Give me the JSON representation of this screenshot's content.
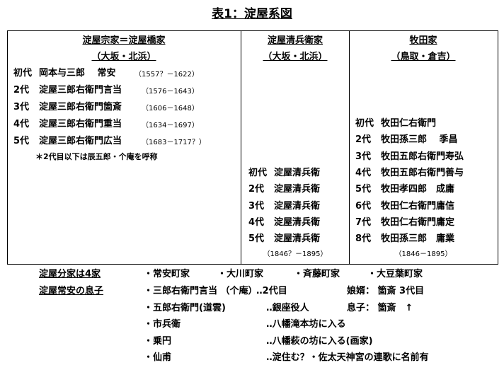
{
  "title": "表1：淀屋系図",
  "columns": [
    {
      "name": "淀屋宗家＝淀屋橋家",
      "place": "（大坂・北浜）",
      "generations": [
        {
          "gen": "初代",
          "name": "岡本与三郎　 常安",
          "years": "（1557？－1622）"
        },
        {
          "gen": "2代",
          "name": "淀屋三郎右衛門言当",
          "years": "（1576－1643）"
        },
        {
          "gen": "3代",
          "name": "淀屋三郎右衛門箇斎",
          "years": "（1606－1648）"
        },
        {
          "gen": "4代",
          "name": "淀屋三郎右衛門重当",
          "years": "（1634－1697）"
        },
        {
          "gen": "5代",
          "name": "淀屋三郎右衛門広当",
          "years": "（1683－1717？）"
        }
      ],
      "note": "＊2代目以下は辰五郎・个庵を呼称"
    },
    {
      "name": "淀屋清兵衛家",
      "place": "（大坂・北浜）",
      "generations": [
        {
          "gen": "初代",
          "name": "淀屋清兵衛"
        },
        {
          "gen": "2代",
          "name": "淀屋清兵衛"
        },
        {
          "gen": "3代",
          "name": "淀屋清兵衛"
        },
        {
          "gen": "4代",
          "name": "淀屋清兵衛"
        },
        {
          "gen": "5代",
          "name": "淀屋清兵衛"
        }
      ],
      "years": "（1846？－1895）"
    },
    {
      "name": "牧田家",
      "place": "（鳥取・倉吉）",
      "generations": [
        {
          "gen": "初代",
          "name": "牧田仁右衛門"
        },
        {
          "gen": "2代",
          "name": "牧田孫三郎　 季昌"
        },
        {
          "gen": "3代",
          "name": "牧田五郎右衛門寿弘"
        },
        {
          "gen": "4代",
          "name": "牧田五郎右衛門善与"
        },
        {
          "gen": "5代",
          "name": "牧田孝四郎　成庸"
        },
        {
          "gen": "6代",
          "name": "牧田仁右衛門庸信"
        },
        {
          "gen": "7代",
          "name": "牧田仁右衛門庸定"
        },
        {
          "gen": "8代",
          "name": "牧田孫三郎　庸業"
        }
      ],
      "years": "（1846－1895）"
    }
  ],
  "branches": {
    "label": "淀屋分家は4家",
    "items": [
      "・常安町家",
      "・大川町家",
      "・斉藤町家",
      "・大豆葉町家"
    ]
  },
  "sons": {
    "label": "淀屋常安の息子",
    "rows": [
      {
        "name": "・三郎右衛門言当 （个庵）",
        "desc": "‥2代目",
        "extra": "娘婿：  箇斎  3代目"
      },
      {
        "name": "・五郎右衛門(道雲)",
        "desc": "‥銀座役人",
        "extra": "息子：  箇斎　↑"
      },
      {
        "name": "・市兵衛",
        "desc": "‥八幡滝本坊に入る"
      },
      {
        "name": "・乗円",
        "desc": "‥八幡萩の坊に入る(画家)"
      },
      {
        "name": "・仙甫",
        "desc": "‥淀住む？・佐太天神宮の連歌に名前有"
      }
    ]
  }
}
